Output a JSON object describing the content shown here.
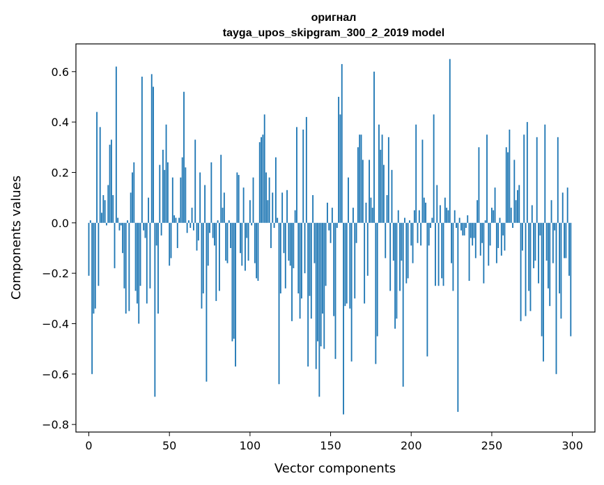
{
  "chart_data": {
    "type": "bar",
    "title_line1": "оригнал",
    "title_line2": "tayga_upos_skipgram_300_2_2019 model",
    "xlabel": "Vector components",
    "ylabel": "Components values",
    "xlim": [
      -8,
      314
    ],
    "ylim": [
      -0.83,
      0.71
    ],
    "xticks": [
      0,
      50,
      100,
      150,
      200,
      250,
      300
    ],
    "yticks": [
      -0.8,
      -0.6,
      -0.4,
      -0.2,
      0.0,
      0.2,
      0.4,
      0.6
    ],
    "ytick_labels": [
      "−0.8",
      "−0.6",
      "−0.4",
      "−0.2",
      "0.0",
      "0.2",
      "0.4",
      "0.6"
    ],
    "bar_color": "#1f77b4",
    "grid": false,
    "values": [
      -0.21,
      0.01,
      -0.6,
      -0.36,
      -0.34,
      0.44,
      -0.25,
      0.38,
      0.04,
      0.11,
      0.09,
      -0.01,
      0.15,
      0.31,
      0.33,
      0.11,
      -0.18,
      0.62,
      0.02,
      -0.03,
      -0.01,
      -0.12,
      -0.26,
      -0.36,
      0.01,
      -0.35,
      0.12,
      0.2,
      0.24,
      -0.27,
      -0.32,
      -0.4,
      -0.25,
      0.58,
      -0.03,
      -0.06,
      -0.32,
      0.1,
      -0.26,
      0.59,
      0.54,
      -0.69,
      -0.09,
      -0.36,
      0.23,
      -0.05,
      0.29,
      0.21,
      0.39,
      0.24,
      -0.17,
      -0.14,
      0.18,
      0.03,
      0.02,
      -0.1,
      0.02,
      0.18,
      0.26,
      0.52,
      0.22,
      -0.04,
      0.01,
      -0.02,
      0.06,
      -0.03,
      0.33,
      -0.11,
      -0.07,
      0.2,
      -0.34,
      -0.28,
      0.15,
      -0.63,
      -0.17,
      -0.04,
      0.24,
      -0.06,
      -0.09,
      -0.31,
      0.01,
      -0.27,
      0.27,
      0.06,
      0.12,
      -0.15,
      -0.16,
      0.01,
      -0.1,
      -0.47,
      -0.46,
      -0.57,
      0.2,
      0.19,
      -0.12,
      -0.17,
      0.14,
      -0.19,
      -0.06,
      -0.15,
      0.09,
      -0.01,
      0.18,
      -0.16,
      -0.22,
      -0.23,
      0.32,
      0.34,
      0.35,
      0.43,
      0.2,
      0.09,
      0.18,
      -0.1,
      0.12,
      -0.02,
      0.26,
      0.02,
      -0.64,
      -0.28,
      0.12,
      -0.12,
      -0.26,
      0.13,
      -0.15,
      -0.17,
      -0.39,
      -0.18,
      0.05,
      0.38,
      -0.28,
      -0.38,
      -0.3,
      0.37,
      -0.2,
      0.42,
      -0.57,
      -0.29,
      -0.38,
      0.11,
      -0.16,
      -0.58,
      -0.47,
      -0.69,
      -0.49,
      -0.36,
      -0.5,
      -0.25,
      0.08,
      -0.03,
      -0.08,
      0.06,
      -0.37,
      -0.54,
      -0.02,
      0.5,
      0.43,
      0.63,
      -0.76,
      -0.33,
      -0.32,
      0.18,
      -0.34,
      -0.55,
      0.06,
      -0.3,
      -0.08,
      0.3,
      0.35,
      0.35,
      0.25,
      -0.32,
      0.08,
      -0.21,
      0.25,
      0.1,
      0.06,
      0.6,
      -0.56,
      -0.45,
      0.39,
      0.29,
      0.35,
      0.23,
      -0.14,
      0.11,
      0.34,
      -0.27,
      0.21,
      -0.15,
      -0.42,
      -0.38,
      0.05,
      -0.27,
      -0.15,
      -0.65,
      0.02,
      -0.24,
      -0.22,
      0.01,
      -0.09,
      -0.16,
      0.05,
      0.39,
      -0.08,
      0.05,
      -0.09,
      0.33,
      0.1,
      0.08,
      -0.53,
      -0.09,
      -0.02,
      0.02,
      0.43,
      -0.25,
      0.15,
      -0.25,
      0.07,
      -0.22,
      -0.25,
      0.1,
      0.06,
      0.05,
      0.65,
      -0.16,
      -0.27,
      0.05,
      -0.02,
      -0.75,
      0.02,
      -0.03,
      -0.05,
      -0.05,
      -0.02,
      0.03,
      -0.23,
      -0.06,
      -0.09,
      -0.06,
      -0.14,
      0.09,
      0.3,
      -0.13,
      -0.08,
      -0.24,
      0.01,
      0.35,
      -0.17,
      -0.09,
      0.06,
      0.05,
      0.14,
      -0.16,
      -0.1,
      0.02,
      -0.13,
      -0.05,
      -0.11,
      0.3,
      0.28,
      0.37,
      0.06,
      -0.02,
      0.25,
      0.09,
      0.13,
      0.15,
      -0.39,
      -0.11,
      0.35,
      -0.37,
      0.4,
      -0.27,
      -0.35,
      0.07,
      -0.18,
      -0.15,
      0.34,
      -0.24,
      -0.05,
      -0.45,
      -0.55,
      0.39,
      -0.15,
      -0.26,
      -0.33,
      0.09,
      -0.16,
      -0.03,
      -0.6,
      0.34,
      -0.28,
      -0.38,
      0.12,
      -0.14,
      -0.14,
      0.14,
      -0.21,
      -0.45
    ]
  }
}
